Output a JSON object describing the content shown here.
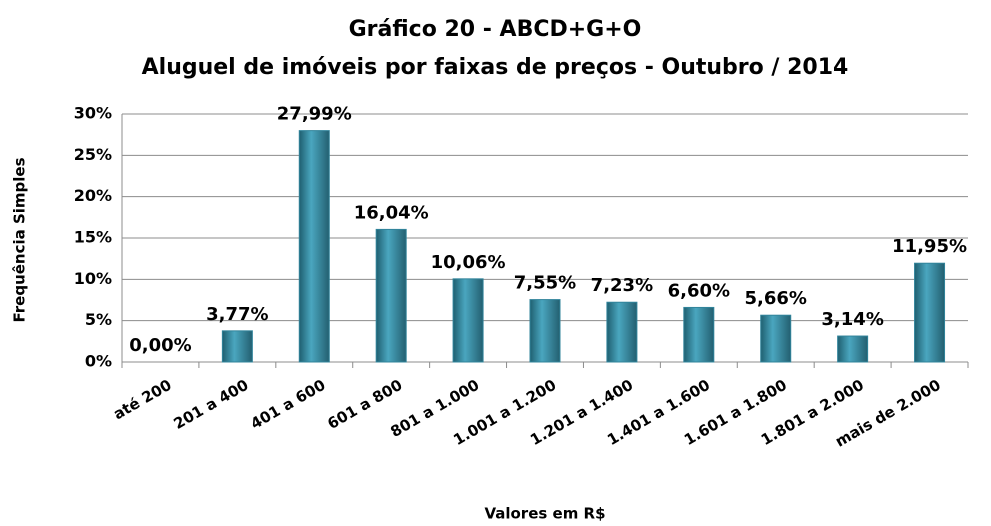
{
  "chart_data": {
    "type": "bar",
    "title": "Gráfico 20 - ABCD+G+O",
    "subtitle": "Aluguel de imóveis por faixas de preços - Outubro / 2014",
    "x_label": "Valores em R$",
    "y_label": "Frequência Simples",
    "categories": [
      "até 200",
      "201 a 400",
      "401 a 600",
      "601 a 800",
      "801 a 1.000",
      "1.001 a 1.200",
      "1.201 a 1.400",
      "1.401 a 1.600",
      "1.601 a 1.800",
      "1.801 a 2.000",
      "mais de 2.000"
    ],
    "values": [
      0,
      3.77,
      27.99,
      16.04,
      10.06,
      7.55,
      7.23,
      6.6,
      5.66,
      3.14,
      11.95
    ],
    "value_labels": [
      "0,00%",
      "3,77%",
      "27,99%",
      "16,04%",
      "10,06%",
      "7,55%",
      "7,23%",
      "6,60%",
      "5,66%",
      "3,14%",
      "11,95%"
    ],
    "color": "#31849b",
    "ylim": [
      0,
      30
    ],
    "yticks": [
      {
        "value": 0,
        "label": "0%"
      },
      {
        "value": 5,
        "label": "5%"
      },
      {
        "value": 10,
        "label": "10%"
      },
      {
        "value": 15,
        "label": "15%"
      },
      {
        "value": 20,
        "label": "20%"
      },
      {
        "value": 25,
        "label": "25%"
      },
      {
        "value": 30,
        "label": "30%"
      }
    ],
    "grid": true
  }
}
